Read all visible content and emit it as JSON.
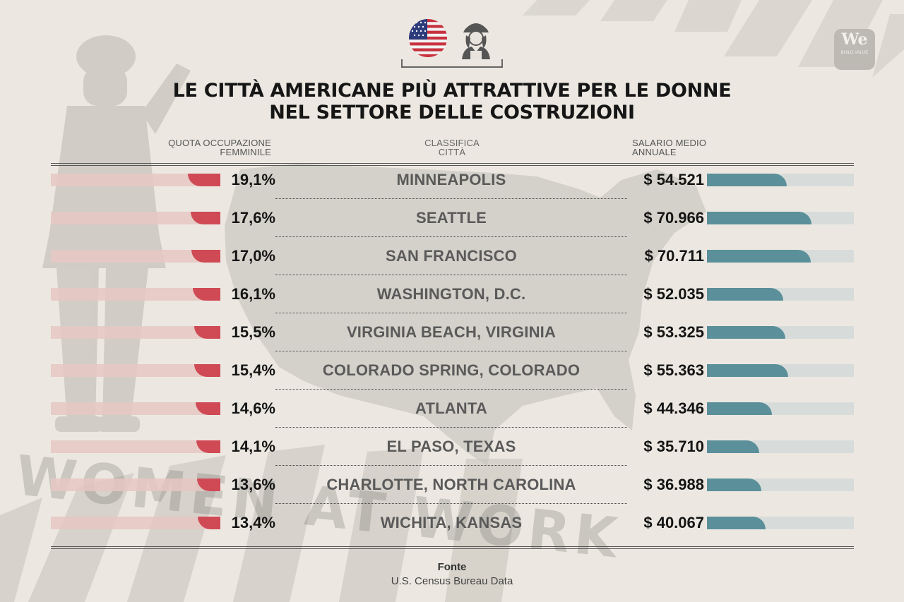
{
  "title_line1": "LE CITTÀ AMERICANE PIÙ ATTRATTIVE PER LE DONNE",
  "title_line2": "NEL SETTORE DELLE COSTRUZIONI",
  "headers": {
    "left_line1": "QUOTA OCCUPAZIONE",
    "left_line2": "FEMMINILE",
    "mid_line1": "CLASSIFICA",
    "mid_line2": "CITTÀ",
    "right_line1": "SALARIO MEDIO",
    "right_line2": "ANNUALE"
  },
  "logo": {
    "big": "We",
    "small": "BUILD VALUE"
  },
  "background_text": "WOMEN AT WORK",
  "colors": {
    "share_bar": "#cf4a55",
    "share_track": "#e6c7c2",
    "salary_bar": "#5b8f9a",
    "salary_track": "#d7dcdb",
    "background": "#ece8e1"
  },
  "icons": [
    "usa-flag-icon",
    "female-construction-worker-icon",
    "we-build-value-logo"
  ],
  "chart_data": {
    "type": "bar",
    "categories": [
      "MINNEAPOLIS",
      "SEATTLE",
      "SAN FRANCISCO",
      "WASHINGTON, D.C.",
      "VIRGINIA BEACH, VIRGINIA",
      "COLORADO SPRING, COLORADO",
      "ATLANTA",
      "EL PASO, TEXAS",
      "CHARLOTTE, NORTH CAROLINA",
      "WICHITA, KANSAS"
    ],
    "series": [
      {
        "name": "QUOTA OCCUPAZIONE FEMMINILE",
        "values": [
          19.1,
          17.6,
          17.0,
          16.1,
          15.5,
          15.4,
          14.6,
          14.1,
          13.6,
          13.4
        ],
        "labels": [
          "19,1%",
          "17,6%",
          "17,0%",
          "16,1%",
          "15,5%",
          "15,4%",
          "14,6%",
          "14,1%",
          "13,6%",
          "13,4%"
        ],
        "max": 100
      },
      {
        "name": "SALARIO MEDIO ANNUALE",
        "values": [
          54521,
          70966,
          70711,
          52035,
          53325,
          55363,
          44346,
          35710,
          36988,
          40067
        ],
        "labels": [
          "$ 54.521",
          "$ 70.966",
          "$ 70.711",
          "$ 52.035",
          "$ 53.325",
          "$ 55.363",
          "$ 44.346",
          "$ 35.710",
          "$ 36.988",
          "$ 40.067"
        ],
        "max": 100000
      }
    ]
  },
  "source_label": "Fonte",
  "source_text": "U.S. Census Bureau Data"
}
